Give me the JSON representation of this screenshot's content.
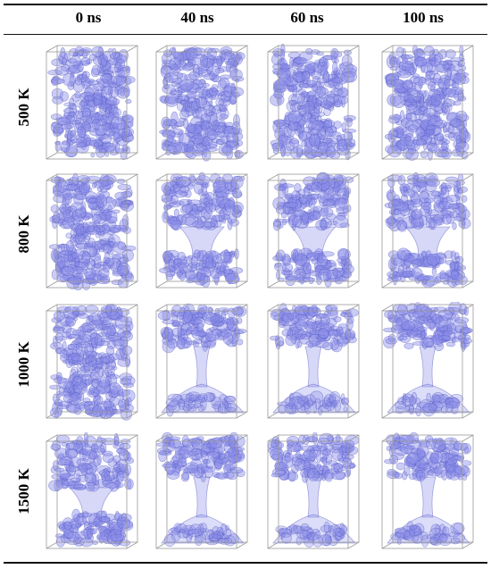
{
  "table": {
    "columns": [
      "0 ns",
      "40 ns",
      "60 ns",
      "100 ns"
    ],
    "rows": [
      {
        "label": "500 K",
        "stages": [
          "full",
          "full",
          "full",
          "full"
        ]
      },
      {
        "label": "800 K",
        "stages": [
          "full",
          "neck",
          "neck",
          "neck"
        ]
      },
      {
        "label": "1000 K",
        "stages": [
          "full",
          "thin",
          "thin",
          "thin"
        ]
      },
      {
        "label": "1500 K",
        "stages": [
          "neck",
          "thin",
          "thin",
          "thin"
        ]
      }
    ]
  },
  "colors": {
    "foam_fill": "#8c8ee8",
    "foam_edge": "#5a5cc4",
    "box_edge": "#9a9a9a",
    "rule": "#111111"
  }
}
